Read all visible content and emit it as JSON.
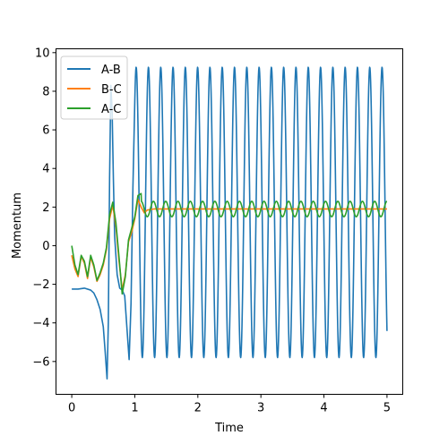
{
  "chart_data": {
    "type": "line",
    "title": "",
    "xlabel": "Time",
    "ylabel": "Momentum",
    "xlim": [
      -0.25,
      5.25
    ],
    "ylim": [
      -7.7,
      10.2
    ],
    "xticks": [
      0,
      1,
      2,
      3,
      4,
      5
    ],
    "xtick_labels": [
      "0",
      "1",
      "2",
      "3",
      "4",
      "5"
    ],
    "yticks": [
      -6,
      -4,
      -2,
      0,
      2,
      4,
      6,
      8,
      10
    ],
    "ytick_labels": [
      "−6",
      "−4",
      "−2",
      "0",
      "2",
      "4",
      "6",
      "8",
      "10"
    ],
    "grid": false,
    "legend_position": "upper-left",
    "series": [
      {
        "name": "A-B",
        "color": "#1f77b4",
        "x": [
          0,
          0.1,
          0.2,
          0.3,
          0.35,
          0.4,
          0.45,
          0.5,
          0.53,
          0.56,
          0.58,
          0.6,
          0.62,
          0.64,
          0.66,
          0.68,
          0.72,
          0.76,
          0.8,
          0.84,
          0.88,
          0.91,
          0.94,
          0.97,
          1.0
        ],
        "y": [
          -2.25,
          -2.25,
          -2.2,
          -2.3,
          -2.45,
          -2.8,
          -3.3,
          -4.2,
          -5.5,
          -6.9,
          -4.0,
          3.5,
          8.3,
          7.0,
          3.5,
          0.5,
          -1.5,
          -2.2,
          -2.3,
          -2.6,
          -4.5,
          -5.9,
          -3.0,
          3.0,
          7.5
        ],
        "oscillation_after": 1.0,
        "oscillation_period": 0.195,
        "oscillation_max": 9.25,
        "oscillation_min": -5.8
      },
      {
        "name": "B-C",
        "color": "#ff7f0e",
        "x": [
          0,
          0.05,
          0.1,
          0.15,
          0.2,
          0.25,
          0.3,
          0.35,
          0.4,
          0.45,
          0.5,
          0.55,
          0.6,
          0.65,
          0.7,
          0.75,
          0.8,
          0.85,
          0.9,
          0.95,
          1.0,
          1.05,
          1.1,
          1.15,
          1.2,
          1.3,
          1.4,
          1.5,
          5.0
        ],
        "y": [
          -0.5,
          -1.2,
          -1.6,
          -0.55,
          -0.9,
          -1.7,
          -0.6,
          -1.1,
          -1.85,
          -1.5,
          -1.0,
          -0.2,
          1.4,
          2.1,
          1.0,
          -0.8,
          -2.3,
          -1.5,
          0.2,
          0.7,
          1.4,
          2.4,
          2.0,
          1.7,
          1.85,
          1.9,
          1.9,
          1.9,
          1.9
        ]
      },
      {
        "name": "A-C",
        "color": "#2ca02c",
        "x": [
          0,
          0.05,
          0.1,
          0.15,
          0.2,
          0.25,
          0.3,
          0.35,
          0.4,
          0.45,
          0.5,
          0.55,
          0.6,
          0.65,
          0.7,
          0.75,
          0.8,
          0.85,
          0.9,
          0.95,
          1.0,
          1.05,
          1.1
        ],
        "y": [
          0.0,
          -1.0,
          -1.5,
          -0.5,
          -0.8,
          -1.6,
          -0.5,
          -1.0,
          -1.8,
          -1.4,
          -0.9,
          -0.1,
          1.6,
          2.25,
          1.2,
          -0.6,
          -2.5,
          -1.6,
          0.3,
          0.9,
          1.5,
          2.6,
          2.7
        ],
        "oscillation_after": 1.1,
        "oscillation_period": 0.195,
        "oscillation_max": 2.3,
        "oscillation_min": 1.5
      }
    ]
  }
}
